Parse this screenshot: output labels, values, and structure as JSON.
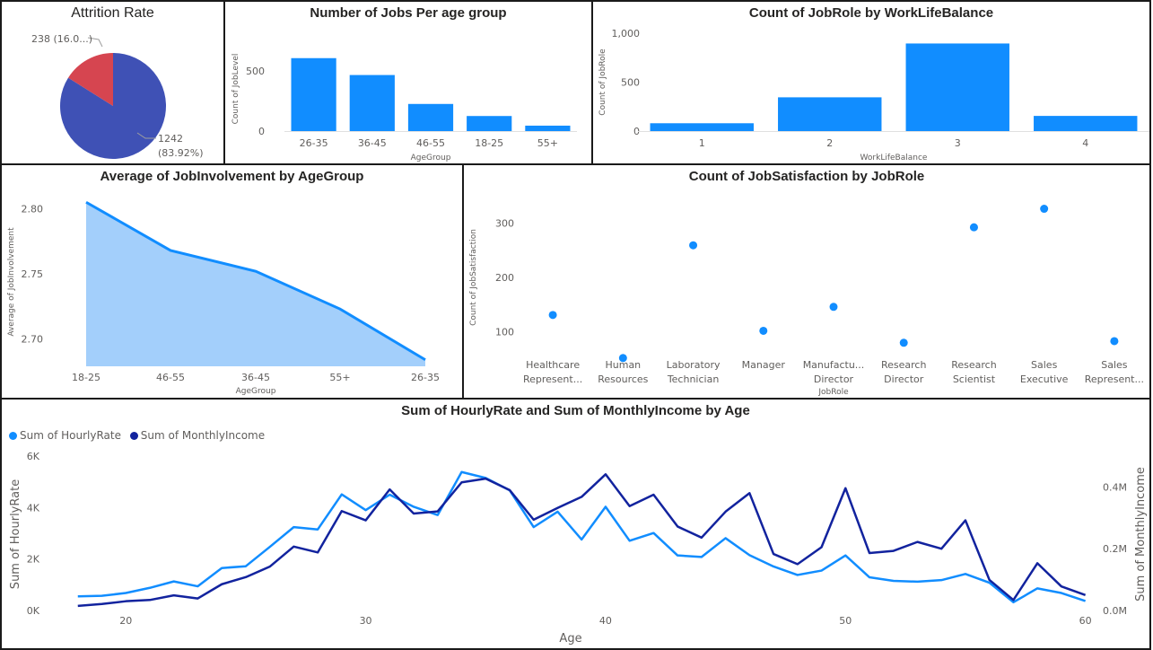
{
  "colors": {
    "primary": "#118dff",
    "dark_blue": "#12239e",
    "pie_main": "#3f51b5",
    "pie_red": "#d64550",
    "area": "#a3cffb",
    "text": "#605e5c"
  },
  "chart_data": [
    {
      "id": "attrition",
      "type": "pie",
      "title": "Attrition Rate",
      "slices": [
        {
          "label": "238 (16.0...)",
          "value": 238,
          "color": "#d64550"
        },
        {
          "label_line1": "1242",
          "label_line2": "(83.92%)",
          "value": 1242,
          "color": "#3f51b5"
        }
      ]
    },
    {
      "id": "jobs_age",
      "type": "bar",
      "title": "Number of Jobs Per age group",
      "xlabel": "AgeGroup",
      "ylabel": "Count of JobLevel",
      "categories": [
        "26-35",
        "36-45",
        "46-55",
        "18-25",
        "55+"
      ],
      "values": [
        605,
        465,
        225,
        125,
        45
      ],
      "yticks": [
        0,
        500
      ],
      "ytick_labels": [
        "0",
        "500"
      ],
      "ylim": [
        0,
        700
      ]
    },
    {
      "id": "worklife",
      "type": "bar",
      "title": "Count of JobRole by WorkLifeBalance",
      "xlabel": "WorkLifeBalance",
      "ylabel": "Count of JobRole",
      "categories": [
        "1",
        "2",
        "3",
        "4"
      ],
      "values": [
        80,
        345,
        895,
        155
      ],
      "yticks": [
        0,
        500,
        1000
      ],
      "ytick_labels": [
        "0",
        "500",
        "1,000"
      ],
      "ylim": [
        0,
        1000
      ]
    },
    {
      "id": "involvement",
      "type": "area",
      "title": "Average of JobInvolvement by AgeGroup",
      "xlabel": "AgeGroup",
      "ylabel": "Average of JobInvolvement",
      "categories": [
        "18-25",
        "46-55",
        "36-45",
        "55+",
        "26-35"
      ],
      "values": [
        2.805,
        2.768,
        2.752,
        2.723,
        2.684
      ],
      "yticks": [
        2.7,
        2.75,
        2.8
      ],
      "ytick_labels": [
        "2.70",
        "2.75",
        "2.80"
      ],
      "ylim": [
        2.679,
        2.81
      ]
    },
    {
      "id": "satisfaction",
      "type": "scatter",
      "title": "Count of JobSatisfaction by JobRole",
      "xlabel": "JobRole",
      "ylabel": "Count of JobSatisfaction",
      "categories": [
        [
          "Healthcare",
          "Represent..."
        ],
        [
          "Human",
          "Resources"
        ],
        [
          "Laboratory",
          "Technician"
        ],
        [
          "Manager",
          ""
        ],
        [
          "Manufactu...",
          "Director"
        ],
        [
          "Research",
          "Director"
        ],
        [
          "Research",
          "Scientist"
        ],
        [
          "Sales",
          "Executive"
        ],
        [
          "Sales",
          "Represent..."
        ]
      ],
      "values": [
        131,
        52,
        259,
        102,
        146,
        80,
        292,
        326,
        83
      ],
      "yticks": [
        100,
        200,
        300
      ],
      "ytick_labels": [
        "100",
        "200",
        "300"
      ],
      "ylim": [
        50,
        350
      ]
    },
    {
      "id": "age_lines",
      "type": "line",
      "title": "Sum of HourlyRate and Sum of MonthlyIncome by Age",
      "xlabel": "Age",
      "ylabel_left": "Sum of HourlyRate",
      "ylabel_right": "Sum of MonthlyIncome",
      "x": [
        18,
        19,
        20,
        21,
        22,
        23,
        24,
        25,
        26,
        27,
        28,
        29,
        30,
        31,
        32,
        33,
        34,
        35,
        36,
        37,
        38,
        39,
        40,
        41,
        42,
        43,
        44,
        45,
        46,
        47,
        48,
        49,
        50,
        51,
        52,
        53,
        54,
        55,
        56,
        57,
        58,
        59,
        60
      ],
      "xticks": [
        20,
        30,
        40,
        50,
        60
      ],
      "xlim": [
        16.7,
        60.5
      ],
      "left_yticks": [
        0,
        2000,
        4000,
        6000
      ],
      "left_ytick_labels": [
        "0K",
        "2K",
        "4K",
        "6K"
      ],
      "left_ylim": [
        0,
        6000
      ],
      "right_yticks": [
        0,
        200000,
        400000
      ],
      "right_ytick_labels": [
        "0.0M",
        "0.2M",
        "0.4M"
      ],
      "right_ylim": [
        0,
        500000
      ],
      "series": [
        {
          "name": "Sum of HourlyRate",
          "axis": "left",
          "color": "#118dff",
          "values": [
            550,
            570,
            680,
            880,
            1130,
            940,
            1650,
            1720,
            2470,
            3240,
            3150,
            4510,
            3900,
            4500,
            4030,
            3710,
            5380,
            5150,
            4670,
            3240,
            3840,
            2760,
            4030,
            2710,
            3010,
            2140,
            2080,
            2810,
            2150,
            1710,
            1380,
            1550,
            2140,
            1290,
            1150,
            1120,
            1180,
            1420,
            1080,
            320,
            860,
            680,
            370
          ]
        },
        {
          "name": "Sum of MonthlyIncome",
          "axis": "right",
          "color": "#12239e",
          "values": [
            15000,
            21000,
            30000,
            34000,
            49000,
            39000,
            85000,
            108000,
            142000,
            207000,
            188000,
            322000,
            292000,
            392000,
            314000,
            321000,
            415000,
            427000,
            390000,
            294000,
            332000,
            368000,
            441000,
            338000,
            375000,
            272000,
            236000,
            320000,
            380000,
            183000,
            150000,
            205000,
            396000,
            186000,
            193000,
            222000,
            200000,
            292000,
            99000,
            34000,
            153000,
            78000,
            50000
          ]
        }
      ]
    }
  ]
}
